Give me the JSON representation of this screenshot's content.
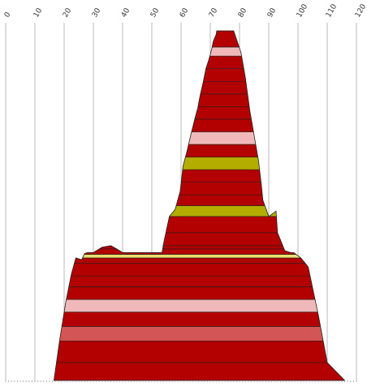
{
  "chart_data": {
    "type": "area",
    "title": "",
    "xlabel": "",
    "ylabel": "",
    "x_axis": {
      "position": "top",
      "min": 0,
      "max": 120,
      "ticks": [
        0,
        10,
        20,
        30,
        40,
        50,
        60,
        70,
        80,
        90,
        100,
        110,
        120
      ],
      "tick_labels": [
        "0",
        "10",
        "20",
        "30",
        "40",
        "50",
        "60",
        "70",
        "80",
        "90",
        "100",
        "110",
        "120"
      ],
      "label_rotation": "-60deg"
    },
    "y_axis": {
      "shown": false,
      "min": 0,
      "max": 100
    },
    "grid": "vertical lines at each tick",
    "colors": {
      "red": "#b30000",
      "pink": "#f0b8b8",
      "olive": "#b3ad00",
      "yellow": "#e8e070",
      "salmon": "#d45555",
      "outline": "#222222"
    },
    "outline": {
      "description": "symmetric stacked-band profile, base spans x 16.5 to 116, peak 72 to 78",
      "points": [
        [
          16.5,
          0
        ],
        [
          18.5,
          11.4
        ],
        [
          20.5,
          21.5
        ],
        [
          22.5,
          29.6
        ],
        [
          24,
          34
        ],
        [
          26,
          33.5
        ],
        [
          27,
          35.2
        ],
        [
          28,
          35.5
        ],
        [
          30,
          35.5
        ],
        [
          33,
          37
        ],
        [
          36,
          37.4
        ],
        [
          38,
          36.5
        ],
        [
          40,
          35.5
        ],
        [
          53.5,
          35.5
        ],
        [
          54,
          38
        ],
        [
          56,
          45.5
        ],
        [
          58,
          47.5
        ],
        [
          59.7,
          52.5
        ],
        [
          60.7,
          59.6
        ],
        [
          62,
          63.5
        ],
        [
          63.5,
          68.7
        ],
        [
          65,
          73.5
        ],
        [
          65.7,
          75.5
        ],
        [
          66.5,
          79
        ],
        [
          67.5,
          82.5
        ],
        [
          68.5,
          86.5
        ],
        [
          69.5,
          89
        ],
        [
          70.5,
          92
        ],
        [
          71,
          94
        ],
        [
          72,
          96
        ],
        [
          72.2,
          97
        ],
        [
          78,
          97
        ],
        [
          80.5,
          91
        ],
        [
          82,
          84
        ],
        [
          83.5,
          75
        ],
        [
          85,
          68
        ],
        [
          86.5,
          61
        ],
        [
          87.5,
          54
        ],
        [
          88,
          50
        ],
        [
          90,
          45.5
        ],
        [
          92.5,
          47
        ],
        [
          93,
          41
        ],
        [
          95.5,
          36
        ],
        [
          97.5,
          35.5
        ],
        [
          98.5,
          35.5
        ],
        [
          101,
          34
        ],
        [
          103.5,
          31.5
        ],
        [
          107,
          18
        ],
        [
          110,
          5
        ],
        [
          116,
          0
        ]
      ]
    },
    "bands": [
      {
        "y0": 0,
        "y1": 5,
        "color": "red"
      },
      {
        "y0": 5,
        "y1": 11,
        "color": "red"
      },
      {
        "y0": 11,
        "y1": 15,
        "color": "salmon"
      },
      {
        "y0": 15,
        "y1": 19,
        "color": "red"
      },
      {
        "y0": 19,
        "y1": 22.5,
        "color": "pink"
      },
      {
        "y0": 22.5,
        "y1": 26,
        "color": "red"
      },
      {
        "y0": 26,
        "y1": 29,
        "color": "red"
      },
      {
        "y0": 29,
        "y1": 32.5,
        "color": "red"
      },
      {
        "y0": 32.5,
        "y1": 34,
        "color": "red"
      },
      {
        "y0": 34,
        "y1": 35,
        "color": "yellow"
      },
      {
        "y0": 35,
        "y1": 36.5,
        "color": "red"
      },
      {
        "y0": 36.5,
        "y1": 37.4,
        "color": "red"
      },
      {
        "y0": 37.4,
        "y1": 41,
        "color": "red"
      },
      {
        "y0": 41,
        "y1": 45.5,
        "color": "red"
      },
      {
        "y0": 45.5,
        "y1": 48.5,
        "color": "olive"
      },
      {
        "y0": 48.5,
        "y1": 51.5,
        "color": "red"
      },
      {
        "y0": 51.5,
        "y1": 55,
        "color": "red"
      },
      {
        "y0": 55,
        "y1": 58.5,
        "color": "red"
      },
      {
        "y0": 58.5,
        "y1": 62,
        "color": "olive"
      },
      {
        "y0": 62,
        "y1": 65.5,
        "color": "red"
      },
      {
        "y0": 65.5,
        "y1": 69,
        "color": "pink"
      },
      {
        "y0": 69,
        "y1": 72.5,
        "color": "red"
      },
      {
        "y0": 72.5,
        "y1": 76,
        "color": "red"
      },
      {
        "y0": 76,
        "y1": 79.5,
        "color": "red"
      },
      {
        "y0": 79.5,
        "y1": 83,
        "color": "red"
      },
      {
        "y0": 83,
        "y1": 86.5,
        "color": "red"
      },
      {
        "y0": 86.5,
        "y1": 90,
        "color": "red"
      },
      {
        "y0": 90,
        "y1": 92.5,
        "color": "pink"
      },
      {
        "y0": 92.5,
        "y1": 97,
        "color": "red"
      }
    ]
  }
}
